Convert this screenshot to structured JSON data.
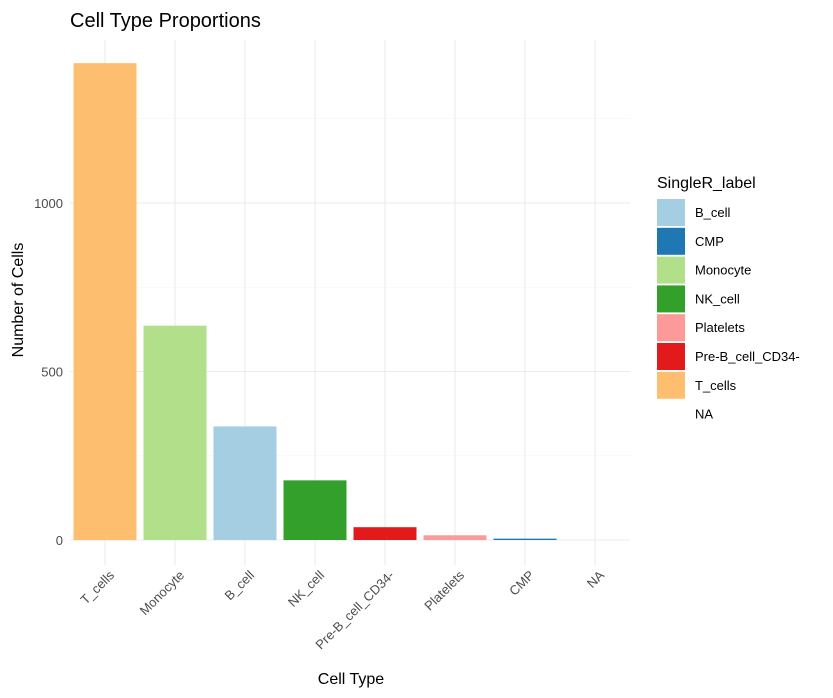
{
  "chart_data": {
    "type": "bar",
    "title": "Cell Type Proportions",
    "xlabel": "Cell Type",
    "ylabel": "Number of Cells",
    "categories": [
      "T_cells",
      "Monocyte",
      "B_cell",
      "NK_cell",
      "Pre-B_cell_CD34-",
      "Platelets",
      "CMP",
      "NA"
    ],
    "values": [
      1415,
      636,
      337,
      177,
      38,
      14,
      4,
      0
    ],
    "bar_colors": [
      "#FDBF6F",
      "#B2DF8A",
      "#A6CEE3",
      "#33A02C",
      "#E31A1C",
      "#FB9A99",
      "#1F78B4",
      "#ffffff"
    ],
    "yticks": [
      0,
      500,
      1000
    ],
    "ylim": [
      -70,
      1475
    ],
    "grid": true,
    "legend": {
      "title": "SingleR_label",
      "position": "right",
      "entries": [
        {
          "label": "B_cell",
          "color": "#A6CEE3"
        },
        {
          "label": "CMP",
          "color": "#1F78B4"
        },
        {
          "label": "Monocyte",
          "color": "#B2DF8A"
        },
        {
          "label": "NK_cell",
          "color": "#33A02C"
        },
        {
          "label": "Platelets",
          "color": "#FB9A99"
        },
        {
          "label": "Pre-B_cell_CD34-",
          "color": "#E31A1C"
        },
        {
          "label": "T_cells",
          "color": "#FDBF6F"
        },
        {
          "label": "NA",
          "color": "#ffffff"
        }
      ]
    }
  }
}
